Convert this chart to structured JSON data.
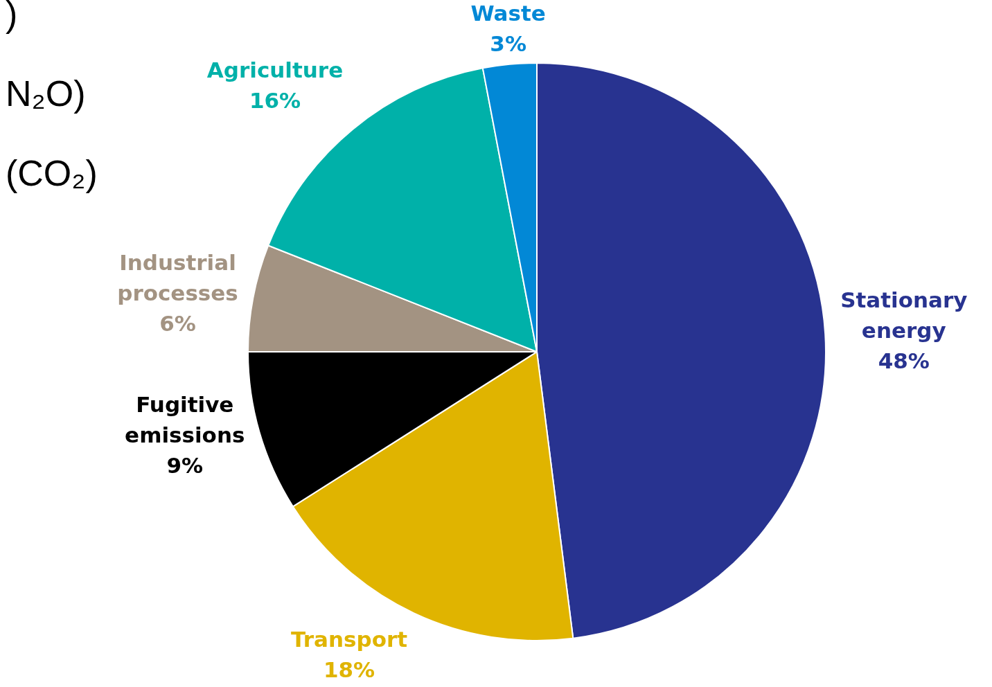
{
  "chart_data": {
    "type": "pie",
    "categories": [
      "Stationary energy",
      "Transport",
      "Fugitive emissions",
      "Industrial processes",
      "Agriculture",
      "Waste"
    ],
    "values": [
      48,
      18,
      9,
      6,
      16,
      3
    ],
    "value_labels": [
      "48%",
      "18%",
      "9%",
      "6%",
      "16%",
      "3%"
    ],
    "colors": [
      "#283390",
      "#e0b400",
      "#000000",
      "#a39382",
      "#00b1a9",
      "#0288d6"
    ],
    "legend": false,
    "annotations": [
      ")",
      "N₂O)",
      "(CO₂)"
    ]
  }
}
